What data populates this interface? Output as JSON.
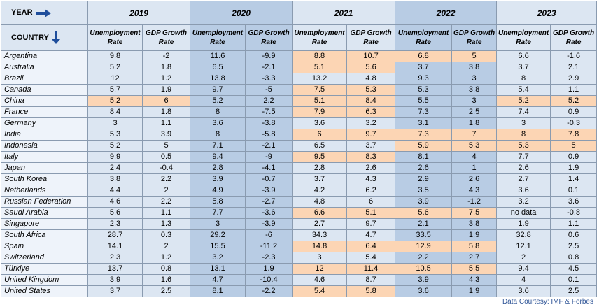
{
  "header": {
    "year_label": "YEAR",
    "country_label": "COUNTRY",
    "years": [
      "2019",
      "2020",
      "2021",
      "2022",
      "2023"
    ],
    "metrics": [
      "Unemployment Rate",
      "GDP Growth Rate"
    ]
  },
  "rows": [
    {
      "country": "Argentina",
      "values": [
        9.8,
        -2,
        11.6,
        -9.9,
        8.8,
        10.7,
        6.8,
        5,
        6.6,
        -1.6
      ],
      "highlight": [
        "2021",
        "2022"
      ]
    },
    {
      "country": "Australia",
      "values": [
        5.2,
        1.8,
        6.5,
        -2.1,
        5.1,
        5.6,
        3.7,
        3.8,
        3.7,
        2.1
      ],
      "highlight": [
        "2021"
      ]
    },
    {
      "country": "Brazil",
      "values": [
        12,
        1.2,
        13.8,
        -3.3,
        13.2,
        4.8,
        9.3,
        3,
        8,
        2.9
      ],
      "highlight": []
    },
    {
      "country": "Canada",
      "values": [
        5.7,
        1.9,
        9.7,
        -5,
        7.5,
        5.3,
        5.3,
        3.8,
        5.4,
        1.1
      ],
      "highlight": [
        "2021"
      ]
    },
    {
      "country": "China",
      "values": [
        5.2,
        6,
        5.2,
        2.2,
        5.1,
        8.4,
        5.5,
        3,
        5.2,
        5.2
      ],
      "highlight": [
        "2019",
        "2021",
        "2023"
      ]
    },
    {
      "country": "France",
      "values": [
        8.4,
        1.8,
        8,
        -7.5,
        7.9,
        6.3,
        7.3,
        2.5,
        7.4,
        0.9
      ],
      "highlight": [
        "2021"
      ]
    },
    {
      "country": "Germany",
      "values": [
        3,
        1.1,
        3.6,
        -3.8,
        3.6,
        3.2,
        3.1,
        1.8,
        3,
        -0.3
      ],
      "highlight": []
    },
    {
      "country": "India",
      "values": [
        5.3,
        3.9,
        8,
        -5.8,
        6,
        9.7,
        7.3,
        7,
        8,
        7.8
      ],
      "highlight": [
        "2021",
        "2022",
        "2023"
      ]
    },
    {
      "country": "Indonesia",
      "values": [
        5.2,
        5,
        7.1,
        -2.1,
        6.5,
        3.7,
        5.9,
        5.3,
        5.3,
        5
      ],
      "highlight": [
        "2022",
        "2023"
      ]
    },
    {
      "country": "Italy",
      "values": [
        9.9,
        0.5,
        9.4,
        -9,
        9.5,
        8.3,
        8.1,
        4,
        7.7,
        0.9
      ],
      "highlight": [
        "2021"
      ]
    },
    {
      "country": "Japan",
      "values": [
        2.4,
        -0.4,
        2.8,
        -4.1,
        2.8,
        2.6,
        2.6,
        1,
        2.6,
        1.9
      ],
      "highlight": []
    },
    {
      "country": "South Korea",
      "values": [
        3.8,
        2.2,
        3.9,
        -0.7,
        3.7,
        4.3,
        2.9,
        2.6,
        2.7,
        1.4
      ],
      "highlight": []
    },
    {
      "country": "Netherlands",
      "values": [
        4.4,
        2,
        4.9,
        -3.9,
        4.2,
        6.2,
        3.5,
        4.3,
        3.6,
        0.1
      ],
      "highlight": []
    },
    {
      "country": "Russian Federation",
      "values": [
        4.6,
        2.2,
        5.8,
        -2.7,
        4.8,
        6,
        3.9,
        -1.2,
        3.2,
        3.6
      ],
      "highlight": []
    },
    {
      "country": "Saudi Arabia",
      "values": [
        5.6,
        1.1,
        7.7,
        -3.6,
        6.6,
        5.1,
        5.6,
        7.5,
        "no data",
        -0.8
      ],
      "highlight": [
        "2021",
        "2022"
      ]
    },
    {
      "country": "Singapore",
      "values": [
        2.3,
        1.3,
        3,
        -3.9,
        2.7,
        9.7,
        2.1,
        3.8,
        1.9,
        1.1
      ],
      "highlight": []
    },
    {
      "country": "South Africa",
      "values": [
        28.7,
        0.3,
        29.2,
        -6,
        34.3,
        4.7,
        33.5,
        1.9,
        32.8,
        0.6
      ],
      "highlight": []
    },
    {
      "country": "Spain",
      "values": [
        14.1,
        2,
        15.5,
        -11.2,
        14.8,
        6.4,
        12.9,
        5.8,
        12.1,
        2.5
      ],
      "highlight": [
        "2021",
        "2022"
      ]
    },
    {
      "country": "Switzerland",
      "values": [
        2.3,
        1.2,
        3.2,
        -2.3,
        3,
        5.4,
        2.2,
        2.7,
        2,
        0.8
      ],
      "highlight": []
    },
    {
      "country": "Türkiye",
      "values": [
        13.7,
        0.8,
        13.1,
        1.9,
        12,
        11.4,
        10.5,
        5.5,
        9.4,
        4.5
      ],
      "highlight": [
        "2021",
        "2022"
      ]
    },
    {
      "country": "United Kingdom",
      "values": [
        3.9,
        1.6,
        4.7,
        -10.4,
        4.6,
        8.7,
        3.9,
        4.3,
        4,
        0.1
      ],
      "highlight": []
    },
    {
      "country": "United States",
      "values": [
        3.7,
        2.5,
        8.1,
        -2.2,
        5.4,
        5.8,
        3.6,
        1.9,
        3.6,
        2.5
      ],
      "highlight": [
        "2021"
      ]
    }
  ],
  "footer": "Data Courtesy: IMF & Forbes"
}
